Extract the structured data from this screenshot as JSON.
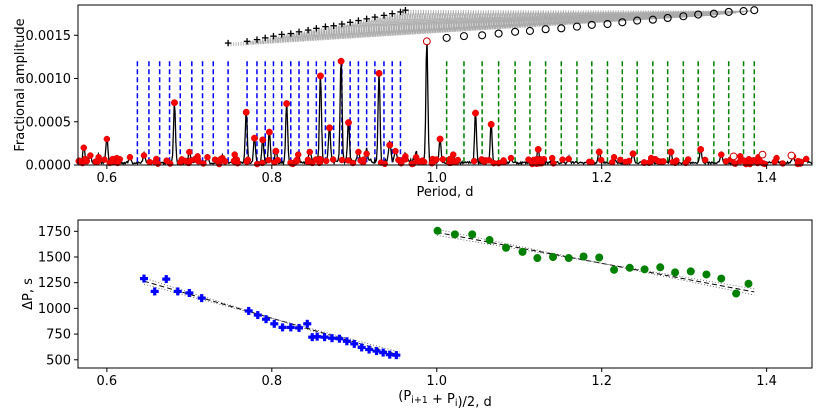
{
  "chart_data": [
    {
      "type": "line",
      "title": "",
      "xlabel": "Period, d",
      "ylabel": "Fractional amplitude",
      "xlim": [
        0.565,
        1.455
      ],
      "ylim": [
        0.0,
        0.00185
      ],
      "xticks": [
        0.6,
        0.8,
        1.0,
        1.2,
        1.4
      ],
      "xtick_labels": [
        "0.6",
        "0.8",
        "1.0",
        "1.2",
        "1.4"
      ],
      "yticks": [
        0.0,
        0.0005,
        0.001,
        0.0015
      ],
      "ytick_labels": [
        "0.0000",
        "0.0005",
        "0.0010",
        "0.0015"
      ],
      "blue_dashed_periods": [
        0.637,
        0.651,
        0.664,
        0.676,
        0.689,
        0.703,
        0.716,
        0.729,
        0.747,
        0.77,
        0.782,
        0.792,
        0.802,
        0.812,
        0.823,
        0.833,
        0.844,
        0.854,
        0.865,
        0.875,
        0.885,
        0.895,
        0.905,
        0.915,
        0.925,
        0.936,
        0.946,
        0.956
      ],
      "green_dashed_periods": [
        1.012,
        1.033,
        1.055,
        1.075,
        1.095,
        1.113,
        1.132,
        1.151,
        1.17,
        1.188,
        1.207,
        1.225,
        1.243,
        1.262,
        1.28,
        1.299,
        1.317,
        1.336,
        1.354,
        1.372,
        1.385
      ],
      "significant_peaks": [
        {
          "period": 0.682,
          "amplitude": 0.00072
        },
        {
          "period": 0.769,
          "amplitude": 0.00061
        },
        {
          "period": 0.779,
          "amplitude": 0.00031
        },
        {
          "period": 0.789,
          "amplitude": 0.00029
        },
        {
          "period": 0.797,
          "amplitude": 0.00038
        },
        {
          "period": 0.805,
          "amplitude": 0.00016
        },
        {
          "period": 0.818,
          "amplitude": 0.00071
        },
        {
          "period": 0.859,
          "amplitude": 0.00103
        },
        {
          "period": 0.87,
          "amplitude": 0.00043
        },
        {
          "period": 0.884,
          "amplitude": 0.0012
        },
        {
          "period": 0.893,
          "amplitude": 0.00049
        },
        {
          "period": 0.93,
          "amplitude": 0.00106
        },
        {
          "period": 0.943,
          "amplitude": 0.00023
        },
        {
          "period": 0.988,
          "amplitude": 0.00143
        },
        {
          "period": 1.004,
          "amplitude": 0.0003
        },
        {
          "period": 1.047,
          "amplitude": 0.0006
        },
        {
          "period": 1.066,
          "amplitude": 0.00047
        },
        {
          "period": 1.123,
          "amplitude": 0.00018
        },
        {
          "period": 1.197,
          "amplitude": 0.00015
        },
        {
          "period": 1.238,
          "amplitude": 0.00013
        },
        {
          "period": 1.284,
          "amplitude": 0.00015
        },
        {
          "period": 1.32,
          "amplitude": 0.00018
        }
      ],
      "noise_peaks": [
        {
          "period": 0.572,
          "amplitude": 0.0002
        },
        {
          "period": 0.58,
          "amplitude": 0.00011
        },
        {
          "period": 0.59,
          "amplitude": 9e-05
        },
        {
          "period": 0.6,
          "amplitude": 0.0003
        },
        {
          "period": 0.612,
          "amplitude": 8e-05
        },
        {
          "period": 0.628,
          "amplitude": 9e-05
        },
        {
          "period": 0.645,
          "amplitude": 0.00011
        },
        {
          "period": 0.66,
          "amplitude": 7e-05
        },
        {
          "period": 0.7,
          "amplitude": 0.00015
        },
        {
          "period": 0.71,
          "amplitude": 0.0001
        },
        {
          "period": 0.722,
          "amplitude": 9e-05
        },
        {
          "period": 0.74,
          "amplitude": 8e-05
        },
        {
          "period": 0.755,
          "amplitude": 0.00012
        },
        {
          "period": 0.832,
          "amplitude": 0.00012
        },
        {
          "period": 0.846,
          "amplitude": 0.00015
        },
        {
          "period": 0.905,
          "amplitude": 0.00015
        },
        {
          "period": 0.915,
          "amplitude": 0.00013
        },
        {
          "period": 0.95,
          "amplitude": 0.00016
        },
        {
          "period": 0.962,
          "amplitude": 0.0001
        },
        {
          "period": 0.975,
          "amplitude": 9e-05
        },
        {
          "period": 1.02,
          "amplitude": 0.00012
        },
        {
          "period": 1.09,
          "amplitude": 8e-05
        },
        {
          "period": 1.14,
          "amplitude": 8e-05
        },
        {
          "period": 1.16,
          "amplitude": 7e-05
        },
        {
          "period": 1.215,
          "amplitude": 9e-05
        },
        {
          "period": 1.26,
          "amplitude": 8e-05
        },
        {
          "period": 1.345,
          "amplitude": 0.00012
        },
        {
          "period": 1.368,
          "amplitude": 0.0001
        },
        {
          "period": 1.39,
          "amplitude": 9e-05
        },
        {
          "period": 1.412,
          "amplitude": 8e-05
        },
        {
          "period": 1.432,
          "amplitude": 0.0001
        },
        {
          "period": 1.448,
          "amplitude": 7e-05
        }
      ],
      "open_circles": [
        {
          "period": 0.988,
          "amplitude": 0.00143
        },
        {
          "period": 1.36,
          "amplitude": 0.0001
        },
        {
          "period": 1.395,
          "amplitude": 0.00012
        },
        {
          "period": 1.43,
          "amplitude": 0.00011
        }
      ],
      "echelle_plus": [
        {
          "period": 0.747,
          "amplitude": 0.00141
        },
        {
          "period": 0.77,
          "amplitude": 0.00143
        },
        {
          "period": 0.782,
          "amplitude": 0.00145
        },
        {
          "period": 0.792,
          "amplitude": 0.00147
        },
        {
          "period": 0.802,
          "amplitude": 0.00149
        },
        {
          "period": 0.812,
          "amplitude": 0.00151
        },
        {
          "period": 0.823,
          "amplitude": 0.00152
        },
        {
          "period": 0.833,
          "amplitude": 0.00154
        },
        {
          "period": 0.844,
          "amplitude": 0.00156
        },
        {
          "period": 0.854,
          "amplitude": 0.00158
        },
        {
          "period": 0.865,
          "amplitude": 0.0016
        },
        {
          "period": 0.875,
          "amplitude": 0.00161
        },
        {
          "period": 0.885,
          "amplitude": 0.00163
        },
        {
          "period": 0.895,
          "amplitude": 0.00165
        },
        {
          "period": 0.905,
          "amplitude": 0.00167
        },
        {
          "period": 0.915,
          "amplitude": 0.00169
        },
        {
          "period": 0.925,
          "amplitude": 0.00171
        },
        {
          "period": 0.936,
          "amplitude": 0.00173
        },
        {
          "period": 0.946,
          "amplitude": 0.00175
        },
        {
          "period": 0.956,
          "amplitude": 0.00177
        },
        {
          "period": 0.962,
          "amplitude": 0.00179
        }
      ],
      "echelle_circles": [
        {
          "period": 1.012,
          "amplitude": 0.00147
        },
        {
          "period": 1.033,
          "amplitude": 0.00149
        },
        {
          "period": 1.055,
          "amplitude": 0.0015
        },
        {
          "period": 1.075,
          "amplitude": 0.00152
        },
        {
          "period": 1.095,
          "amplitude": 0.00154
        },
        {
          "period": 1.113,
          "amplitude": 0.00155
        },
        {
          "period": 1.132,
          "amplitude": 0.00157
        },
        {
          "period": 1.151,
          "amplitude": 0.00158
        },
        {
          "period": 1.17,
          "amplitude": 0.0016
        },
        {
          "period": 1.188,
          "amplitude": 0.00162
        },
        {
          "period": 1.207,
          "amplitude": 0.00163
        },
        {
          "period": 1.225,
          "amplitude": 0.00165
        },
        {
          "period": 1.243,
          "amplitude": 0.00167
        },
        {
          "period": 1.262,
          "amplitude": 0.00168
        },
        {
          "period": 1.28,
          "amplitude": 0.0017
        },
        {
          "period": 1.299,
          "amplitude": 0.00172
        },
        {
          "period": 1.317,
          "amplitude": 0.00174
        },
        {
          "period": 1.336,
          "amplitude": 0.00175
        },
        {
          "period": 1.354,
          "amplitude": 0.00177
        },
        {
          "period": 1.372,
          "amplitude": 0.00178
        },
        {
          "period": 1.385,
          "amplitude": 0.00179
        }
      ]
    },
    {
      "type": "scatter",
      "title": "",
      "xlabel": "(P_{i+1} + P_i)/2, d",
      "ylabel": "ΔP, s",
      "xlim": [
        0.565,
        1.455
      ],
      "ylim": [
        420,
        1860
      ],
      "xticks": [
        0.6,
        0.8,
        1.0,
        1.2,
        1.4
      ],
      "xtick_labels": [
        "0.6",
        "0.8",
        "1.0",
        "1.2",
        "1.4"
      ],
      "yticks": [
        500,
        750,
        1000,
        1250,
        1500,
        1750
      ],
      "ytick_labels": [
        "500",
        "750",
        "1000",
        "1250",
        "1500",
        "1750"
      ],
      "series": [
        {
          "name": "blue",
          "color": "#0000ff",
          "marker": "plus",
          "x": [
            0.645,
            0.658,
            0.672,
            0.686,
            0.7,
            0.715,
            0.772,
            0.783,
            0.793,
            0.803,
            0.813,
            0.823,
            0.833,
            0.843,
            0.849,
            0.855,
            0.864,
            0.873,
            0.882,
            0.891,
            0.9,
            0.909,
            0.918,
            0.927,
            0.935,
            0.943,
            0.951
          ],
          "y": [
            1290,
            1165,
            1285,
            1165,
            1150,
            1100,
            975,
            935,
            895,
            850,
            815,
            815,
            810,
            850,
            720,
            725,
            720,
            710,
            705,
            680,
            655,
            620,
            600,
            585,
            570,
            550,
            545
          ]
        },
        {
          "name": "green",
          "color": "#008000",
          "marker": "circle",
          "x": [
            1.001,
            1.022,
            1.043,
            1.064,
            1.084,
            1.104,
            1.122,
            1.141,
            1.16,
            1.178,
            1.197,
            1.215,
            1.234,
            1.252,
            1.271,
            1.289,
            1.308,
            1.327,
            1.345,
            1.363,
            1.378
          ],
          "y": [
            1755,
            1720,
            1720,
            1665,
            1590,
            1550,
            1490,
            1500,
            1490,
            1505,
            1495,
            1375,
            1395,
            1380,
            1400,
            1350,
            1360,
            1330,
            1290,
            1145,
            1240
          ]
        }
      ],
      "fit_lines": {
        "blue": {
          "x": [
            0.645,
            0.955
          ],
          "y": [
            1265,
            545
          ]
        },
        "green": {
          "x": [
            1.0,
            1.385
          ],
          "y": [
            1740,
            1160
          ]
        }
      }
    }
  ]
}
